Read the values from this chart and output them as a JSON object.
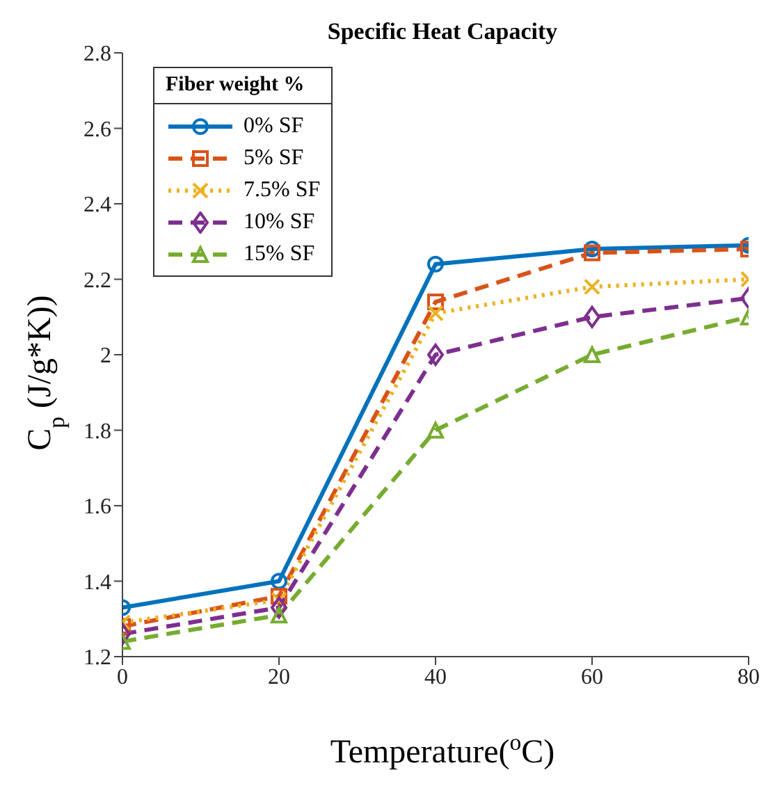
{
  "chart_data": {
    "type": "line",
    "title": "Specific Heat Capacity",
    "xlabel": "Temperature($^{o}$C)",
    "ylabel": "C$_{p}$ (J/g*K))",
    "legend_title": "Fiber weight %",
    "x": [
      0,
      20,
      40,
      60,
      80
    ],
    "series": [
      {
        "name": "0% SF",
        "color": "#0072bd",
        "values": [
          1.33,
          1.4,
          2.24,
          2.28,
          2.29
        ],
        "marker": "circle",
        "line_style": "solid"
      },
      {
        "name": "5% SF",
        "color": "#d95319",
        "values": [
          1.28,
          1.36,
          2.14,
          2.27,
          2.28
        ],
        "marker": "square",
        "line_style": "dashed"
      },
      {
        "name": "7.5% SF",
        "color": "#edb120",
        "values": [
          1.29,
          1.35,
          2.11,
          2.18,
          2.2
        ],
        "marker": "cross",
        "line_style": "dotted"
      },
      {
        "name": "10% SF",
        "color": "#7e2f8e",
        "values": [
          1.26,
          1.33,
          2.0,
          2.1,
          2.15
        ],
        "marker": "diamond",
        "line_style": "dashed"
      },
      {
        "name": "15% SF",
        "color": "#77ac30",
        "values": [
          1.24,
          1.31,
          1.8,
          2.0,
          2.1
        ],
        "marker": "triangle",
        "line_style": "dashed"
      }
    ],
    "xlim": [
      0,
      80
    ],
    "xticks": [
      0,
      20,
      40,
      60,
      80
    ],
    "ylim": [
      1.2,
      2.8
    ],
    "yticks": [
      1.2,
      1.4,
      1.6,
      1.8,
      2,
      2.2,
      2.4,
      2.6,
      2.8
    ],
    "grid": false,
    "legend": "top left"
  }
}
